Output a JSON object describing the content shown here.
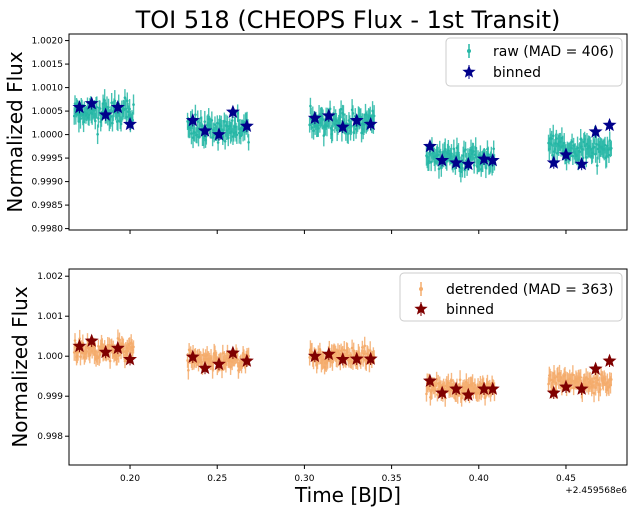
{
  "chart_data": [
    {
      "type": "scatter",
      "title": "TOI 518 (CHEOPS Flux - 1st Transit)",
      "xlabel": "",
      "ylabel": "Normalized Flux",
      "xlim": [
        0.165,
        0.485
      ],
      "ylim": [
        0.99797,
        1.00214
      ],
      "x_ticks": [
        0.2,
        0.25,
        0.3,
        0.35,
        0.4,
        0.45
      ],
      "x_ticklabels_shown": false,
      "y_ticks": [
        0.998,
        0.9985,
        0.999,
        0.9995,
        1.0,
        1.0005,
        1.001,
        1.0015,
        1.002
      ],
      "y_ticklabels": [
        "0.9980",
        "0.9985",
        "0.9990",
        "0.9995",
        "1.0000",
        "1.0005",
        "1.0010",
        "1.0015",
        "1.0020"
      ],
      "legend_position": "top-right",
      "series": [
        {
          "name": "raw (MAD = 406)",
          "kind": "errorbar-points",
          "color": "#27b7a6",
          "orbits": [
            {
              "start": 0.168,
              "end": 0.202,
              "level": 1.00045
            },
            {
              "start": 0.233,
              "end": 0.268,
              "level": 1.00012
            },
            {
              "start": 0.303,
              "end": 0.34,
              "level": 1.00025
            },
            {
              "start": 0.37,
              "end": 0.409,
              "level": 0.9995
            },
            {
              "start": 0.44,
              "end": 0.476,
              "level": 0.9997
            }
          ],
          "scatter": 0.00038,
          "errorbar": 0.0002
        },
        {
          "name": "binned",
          "kind": "star-markers",
          "color": "#00008b",
          "x": [
            0.171,
            0.178,
            0.186,
            0.193,
            0.2,
            0.236,
            0.243,
            0.251,
            0.259,
            0.267,
            0.306,
            0.314,
            0.322,
            0.33,
            0.338,
            0.372,
            0.379,
            0.387,
            0.394,
            0.403,
            0.408,
            0.443,
            0.45,
            0.459,
            0.467,
            0.475
          ],
          "y": [
            1.00058,
            1.00066,
            1.00042,
            1.00058,
            1.00022,
            1.0003,
            1.00008,
            1.0,
            1.00048,
            1.00018,
            1.00035,
            1.0004,
            1.00016,
            1.0003,
            1.00022,
            0.99975,
            0.99945,
            0.9994,
            0.99937,
            0.99948,
            0.99945,
            0.9994,
            0.99957,
            0.99937,
            1.00006,
            1.0002
          ]
        }
      ]
    },
    {
      "type": "scatter",
      "title": "",
      "xlabel": "Time [BJD]",
      "ylabel": "Normalized Flux",
      "x_offset_label": "+2.459568e6",
      "xlim": [
        0.165,
        0.485
      ],
      "ylim": [
        0.99728,
        1.00218
      ],
      "x_ticks": [
        0.2,
        0.25,
        0.3,
        0.35,
        0.4,
        0.45
      ],
      "x_ticklabels": [
        "0.20",
        "0.25",
        "0.30",
        "0.35",
        "0.40",
        "0.45"
      ],
      "y_ticks": [
        0.998,
        0.999,
        1.0,
        1.001,
        1.002
      ],
      "y_ticklabels": [
        "0.998",
        "0.999",
        "1.000",
        "1.001",
        "1.002"
      ],
      "legend_position": "top-right",
      "series": [
        {
          "name": "detrended (MAD = 363)",
          "kind": "errorbar-points",
          "color": "#f4ac6c",
          "orbits": [
            {
              "start": 0.168,
              "end": 0.202,
              "level": 1.00015
            },
            {
              "start": 0.233,
              "end": 0.268,
              "level": 0.9999
            },
            {
              "start": 0.303,
              "end": 0.34,
              "level": 0.99998
            },
            {
              "start": 0.37,
              "end": 0.409,
              "level": 0.9992
            },
            {
              "start": 0.44,
              "end": 0.476,
              "level": 0.99935
            }
          ],
          "scatter": 0.00035,
          "errorbar": 0.0002
        },
        {
          "name": "binned",
          "kind": "star-markers",
          "color": "#7f0000",
          "x": [
            0.171,
            0.178,
            0.186,
            0.193,
            0.2,
            0.236,
            0.243,
            0.251,
            0.259,
            0.267,
            0.306,
            0.314,
            0.322,
            0.33,
            0.338,
            0.372,
            0.379,
            0.387,
            0.394,
            0.403,
            0.408,
            0.443,
            0.45,
            0.459,
            0.467,
            0.475
          ],
          "y": [
            1.00025,
            1.00038,
            1.0001,
            1.0002,
            0.99992,
            0.99998,
            0.9997,
            0.9998,
            1.00008,
            0.99988,
            1.0,
            1.00005,
            0.99992,
            0.99993,
            0.99993,
            0.99938,
            0.99908,
            0.99918,
            0.99903,
            0.99918,
            0.99918,
            0.99908,
            0.99923,
            0.99918,
            0.99968,
            0.99988
          ]
        }
      ]
    }
  ]
}
